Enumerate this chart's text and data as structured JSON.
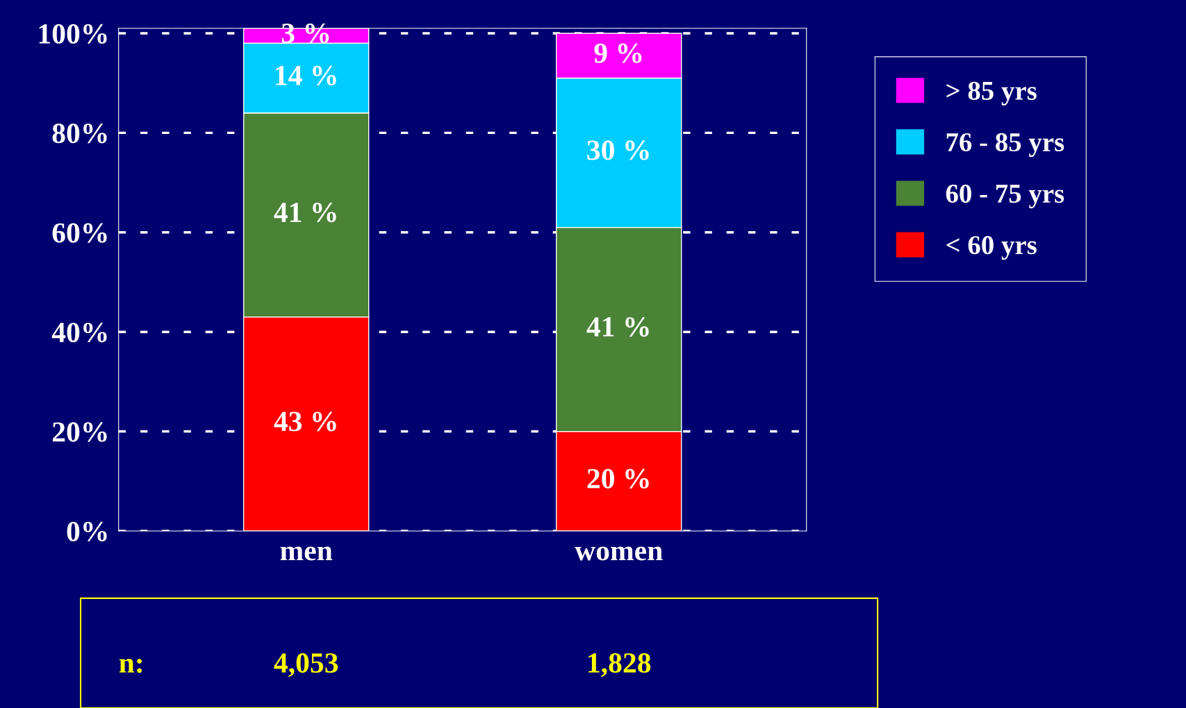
{
  "chart_data": {
    "type": "bar",
    "stacked": true,
    "categories": [
      "men",
      "women"
    ],
    "series": [
      {
        "name": "< 60 yrs",
        "color": "#ff0000",
        "values": [
          43,
          20
        ],
        "value_labels": [
          "43 %",
          "20 %"
        ]
      },
      {
        "name": "60 - 75 yrs",
        "color": "#4a8236",
        "values": [
          41,
          41
        ],
        "value_labels": [
          "41 %",
          "41 %"
        ]
      },
      {
        "name": "76 - 85 yrs",
        "color": "#00ccff",
        "values": [
          14,
          30
        ],
        "value_labels": [
          "14 %",
          "30 %"
        ]
      },
      {
        "name": "> 85 yrs",
        "color": "#ff00ff",
        "values": [
          3,
          9
        ],
        "value_labels": [
          "3 %",
          "9 %"
        ]
      }
    ],
    "ylim": [
      0,
      101
    ],
    "yticks": [
      {
        "value": 0,
        "label": "0%"
      },
      {
        "value": 20,
        "label": "20%"
      },
      {
        "value": 40,
        "label": "40%"
      },
      {
        "value": 60,
        "label": "60%"
      },
      {
        "value": 80,
        "label": "80%"
      },
      {
        "value": 100,
        "label": "100%"
      }
    ],
    "grid": "y",
    "legend": "right",
    "annotations": [
      "n:",
      "4,053",
      "1,828"
    ]
  }
}
